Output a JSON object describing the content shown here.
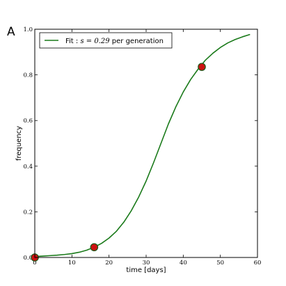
{
  "panel_label": "A",
  "chart_data": {
    "type": "line",
    "xlabel": "time [days]",
    "ylabel": "frequency",
    "xlim": [
      0,
      60
    ],
    "ylim": [
      0.0,
      1.0
    ],
    "xticks": [
      "0",
      "10",
      "20",
      "30",
      "40",
      "50",
      "60"
    ],
    "yticks": [
      "0.0",
      "0.2",
      "0.4",
      "0.6",
      "0.8",
      "1.0"
    ],
    "legend": {
      "position": "top-left",
      "label_prefix": "Fit : ",
      "label_math": "s = 0.29",
      "label_suffix": " per generation"
    },
    "series": [
      {
        "name": "Fit : s = 0.29 per generation",
        "kind": "line",
        "color": "#1a7a1a",
        "x": [
          0,
          2,
          4,
          6,
          8,
          10,
          12,
          14,
          16,
          18,
          20,
          22,
          24,
          26,
          28,
          30,
          32,
          34,
          36,
          38,
          40,
          42,
          44,
          46,
          48,
          50,
          52,
          54,
          56,
          58
        ],
        "y": [
          0.004,
          0.006,
          0.008,
          0.01,
          0.013,
          0.017,
          0.023,
          0.032,
          0.045,
          0.062,
          0.085,
          0.115,
          0.155,
          0.205,
          0.265,
          0.335,
          0.415,
          0.5,
          0.585,
          0.66,
          0.725,
          0.78,
          0.825,
          0.865,
          0.895,
          0.92,
          0.94,
          0.955,
          0.967,
          0.977
        ]
      },
      {
        "kind": "scatter",
        "color": "#cc1111",
        "edge_color": "#1a5a1a",
        "x": [
          0,
          16,
          45
        ],
        "y": [
          0.0,
          0.045,
          0.835
        ]
      }
    ]
  }
}
